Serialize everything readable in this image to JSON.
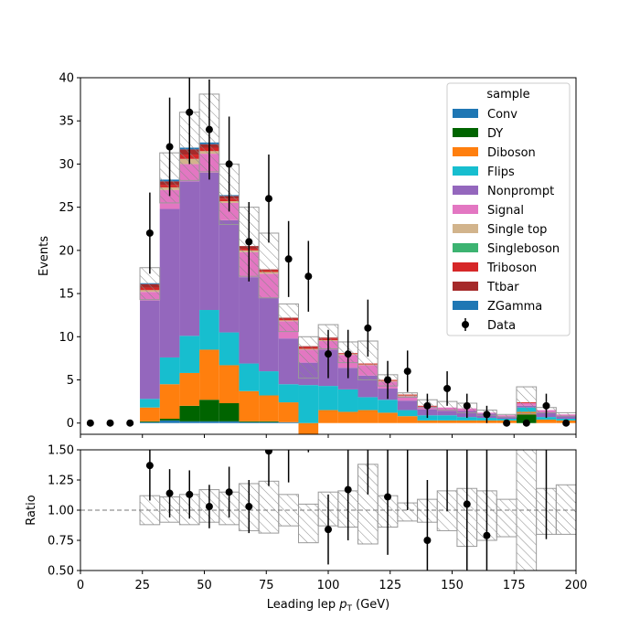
{
  "chart_data": {
    "type": "bar",
    "stacked": true,
    "xlabel_main": "Leading lep ",
    "xlabel_italic": "p",
    "xlabel_sub": "T",
    "xlabel_unit": " (GeV)",
    "ylabel": "Events",
    "ratio_ylabel": "Ratio",
    "xlim": [
      0,
      200
    ],
    "ylim": [
      -1.3,
      40
    ],
    "ratio_ylim": [
      0.5,
      1.5
    ],
    "x_ticks": [
      "0",
      "25",
      "50",
      "75",
      "100",
      "125",
      "150",
      "175",
      "200"
    ],
    "y_ticks": [
      "0",
      "5",
      "10",
      "15",
      "20",
      "25",
      "30",
      "35",
      "40"
    ],
    "ratio_y_ticks": [
      "0.50",
      "0.75",
      "1.00",
      "1.25",
      "1.50"
    ],
    "legend_title": "sample",
    "legend_position": "top-right",
    "bin_edges": [
      24,
      32,
      40,
      48,
      56,
      64,
      72,
      80,
      88,
      96,
      104,
      112,
      120,
      128,
      136,
      144,
      152,
      160,
      168,
      176,
      184,
      192,
      200
    ],
    "series": [
      {
        "name": "Conv",
        "color": "#1f77b4",
        "values": [
          0.1,
          0.3,
          0.2,
          0.2,
          0.2,
          0.1,
          0.1,
          0.1,
          0,
          0,
          0,
          0,
          0,
          0,
          0,
          0,
          0,
          0,
          0,
          0,
          0,
          0
        ]
      },
      {
        "name": "DY",
        "color": "#006400",
        "values": [
          0.1,
          0.2,
          1.8,
          2.5,
          2.1,
          0.1,
          0.1,
          0,
          0,
          0,
          0,
          0,
          0,
          0,
          0,
          0,
          0,
          0,
          0,
          1.0,
          0,
          0
        ]
      },
      {
        "name": "Diboson",
        "color": "#ff7f0e",
        "values": [
          1.6,
          4.0,
          3.8,
          5.8,
          4.4,
          3.5,
          3.0,
          2.3,
          -1.8,
          1.5,
          1.3,
          1.5,
          1.2,
          0.8,
          0.3,
          0.3,
          0.3,
          0.3,
          0.3,
          0.3,
          0.4,
          0.3
        ]
      },
      {
        "name": "Flips",
        "color": "#17becf",
        "values": [
          1.0,
          3.1,
          4.3,
          4.6,
          3.8,
          3.2,
          2.8,
          2.1,
          4.4,
          2.8,
          2.6,
          1.5,
          1.5,
          0.7,
          0.6,
          0.6,
          0.4,
          0.3,
          0.2,
          0.5,
          0.3,
          0.2
        ]
      },
      {
        "name": "Nonprompt",
        "color": "#9467bd",
        "values": [
          11.4,
          17.2,
          17.9,
          15.9,
          13.0,
          10.0,
          8.5,
          5.3,
          2.6,
          4.2,
          2.5,
          2.5,
          1.3,
          1.1,
          0.7,
          0.5,
          0.7,
          0.5,
          0.2,
          0.2,
          0.5,
          0.3
        ]
      },
      {
        "name": "Signal",
        "color": "#e377c2",
        "values": [
          1.0,
          2.2,
          2.0,
          2.2,
          2.0,
          2.9,
          2.8,
          2.0,
          1.5,
          1.0,
          1.5,
          1.2,
          0.8,
          0.5,
          0.3,
          0.4,
          0.3,
          0.1,
          0.2,
          0.3,
          0.3,
          0.2
        ]
      },
      {
        "name": "Single top",
        "color": "#d2b48c",
        "values": [
          0.2,
          0.3,
          0.6,
          0.3,
          0.2,
          0.2,
          0.2,
          0.1,
          0.1,
          0.1,
          0.1,
          0.1,
          0.1,
          0.1,
          0,
          0,
          0,
          0,
          0,
          0,
          0,
          0
        ]
      },
      {
        "name": "Singleboson",
        "color": "#3cb371",
        "values": [
          0,
          0,
          0,
          0,
          0,
          0,
          0,
          0,
          0,
          0,
          0,
          0,
          0,
          0,
          0,
          0,
          0,
          0,
          0,
          0,
          0,
          0
        ]
      },
      {
        "name": "Triboson",
        "color": "#d62728",
        "values": [
          0.3,
          0.3,
          0.5,
          0.4,
          0.3,
          0.2,
          0.2,
          0.2,
          0.2,
          0.2,
          0.1,
          0.1,
          0.1,
          0.1,
          0.1,
          0,
          0,
          0,
          0,
          0.1,
          0,
          0
        ]
      },
      {
        "name": "Ttbar",
        "color": "#a52a2a",
        "values": [
          0.4,
          0.4,
          0.6,
          0.4,
          0.3,
          0.3,
          0.1,
          0.1,
          0.1,
          0.1,
          0,
          0,
          0,
          0,
          0,
          0,
          0,
          0,
          0,
          0,
          0,
          0
        ]
      },
      {
        "name": "ZGamma",
        "color": "#1f77b4",
        "values": [
          0.1,
          0.2,
          0.2,
          0.2,
          0.1,
          0,
          0,
          0,
          0,
          0,
          0,
          0,
          0,
          0,
          0,
          0,
          0,
          0,
          0,
          0,
          0,
          0
        ]
      }
    ],
    "uncertainty": {
      "label": "hatched",
      "total": [
        16.1,
        28.2,
        31.9,
        32.5,
        26.0,
        20.5,
        17.8,
        12.2,
        7.1,
        9.9,
        8.1,
        6.9,
        5.0,
        3.3,
        2.0,
        1.8,
        1.7,
        1.2,
        0.9,
        2.4,
        1.5,
        1.0
      ],
      "up": [
        18.0,
        31.3,
        36.0,
        38.1,
        30.0,
        25.0,
        22.0,
        13.8,
        10.0,
        11.4,
        9.4,
        9.5,
        5.6,
        3.5,
        2.7,
        2.5,
        2.3,
        1.5,
        1.0,
        4.2,
        1.8,
        1.2
      ],
      "down": [
        14.3,
        25.5,
        28.1,
        29.1,
        23.0,
        17.0,
        14.5,
        10.6,
        5.2,
        8.6,
        7.0,
        5.0,
        4.3,
        3.0,
        1.8,
        1.5,
        1.2,
        0.9,
        0.7,
        1.1,
        1.2,
        0.8
      ],
      "ratio_up": [
        1.12,
        1.11,
        1.13,
        1.17,
        1.15,
        1.22,
        1.24,
        1.13,
        1.05,
        1.15,
        1.16,
        1.38,
        1.12,
        1.06,
        1.09,
        1.16,
        1.18,
        1.16,
        1.09,
        1.75,
        1.18,
        1.21
      ],
      "ratio_down": [
        0.88,
        0.9,
        0.88,
        0.9,
        0.88,
        0.83,
        0.81,
        0.87,
        0.73,
        0.87,
        0.86,
        0.72,
        0.86,
        0.91,
        0.9,
        0.83,
        0.7,
        0.75,
        0.78,
        0.46,
        0.8,
        0.8
      ]
    },
    "data_series": {
      "name": "Data",
      "x": [
        4,
        12,
        20,
        28,
        36,
        44,
        52,
        60,
        68,
        76,
        84,
        92,
        100,
        108,
        116,
        124,
        132,
        140,
        148,
        156,
        164,
        172,
        180,
        188,
        196
      ],
      "y": [
        0,
        0,
        0,
        22,
        32,
        36,
        34,
        30,
        21,
        26,
        19,
        17,
        8,
        8,
        11,
        5,
        6,
        2,
        4,
        2,
        1,
        0,
        0,
        2,
        0
      ],
      "yerr": [
        0,
        0,
        0,
        4.7,
        5.7,
        6.0,
        5.8,
        5.5,
        4.6,
        5.1,
        4.4,
        4.1,
        2.8,
        2.8,
        3.3,
        2.2,
        2.4,
        1.4,
        2.0,
        1.4,
        1.0,
        0,
        0,
        1.4,
        0
      ]
    },
    "ratio_points": {
      "x": [
        28,
        36,
        44,
        52,
        60,
        68,
        76,
        100,
        108,
        124,
        140,
        156,
        164
      ],
      "y": [
        1.37,
        1.14,
        1.13,
        1.03,
        1.15,
        1.03,
        1.49,
        0.84,
        1.17,
        1.11,
        0.75,
        1.05,
        0.79
      ],
      "yerr": [
        0.29,
        0.2,
        0.2,
        0.18,
        0.21,
        0.22,
        0.29,
        0.29,
        0.42,
        0.48,
        0.5,
        0.6,
        0.75
      ]
    },
    "ratio_bars_only": {
      "x": [
        84,
        92,
        116,
        132,
        148,
        188
      ],
      "y_low": [
        1.23,
        1.48,
        1.13,
        1.0,
        0.99,
        0.76
      ],
      "y_high": [
        1.5,
        1.5,
        1.5,
        1.5,
        1.5,
        1.5
      ]
    }
  }
}
